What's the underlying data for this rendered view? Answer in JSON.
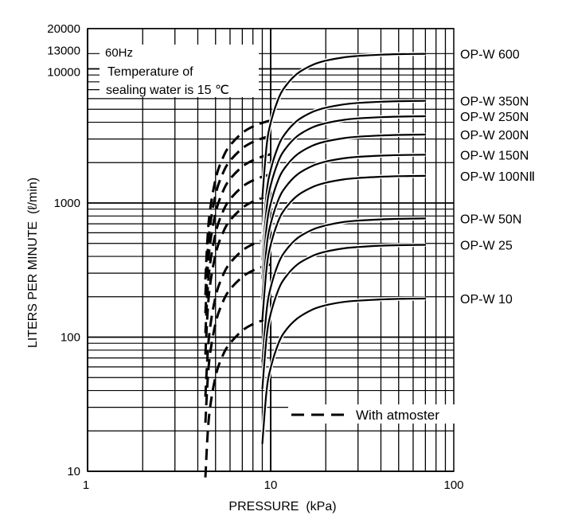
{
  "chart_data": {
    "type": "line",
    "title": "",
    "xlabel": "PRESSURE  (kPa)",
    "ylabel": "LITERS PER MINUTE  (ℓ/min)",
    "xscale": "log",
    "yscale": "log",
    "xlim": [
      1,
      100
    ],
    "ylim": [
      10,
      20000
    ],
    "grid": true,
    "x_ticks": [
      "1",
      "10",
      "100"
    ],
    "x_tick_values": [
      1,
      10,
      100
    ],
    "y_ticks": [
      "10",
      "100",
      "1000",
      "10000",
      "13000",
      "20000"
    ],
    "y_tick_values": [
      10,
      100,
      1000,
      10000,
      13000,
      20000
    ],
    "annotation": {
      "line1": "60Hz",
      "line2": "Temperature of",
      "line3": "sealing water is 15 ℃"
    },
    "legend": {
      "dashed_label": "With atmoster",
      "placement": "bottom-right"
    },
    "x": [
      9,
      9.5,
      10,
      11,
      12,
      14,
      17,
      20,
      25,
      30,
      40,
      50,
      70
    ],
    "series": [
      {
        "name": "OP-W 600",
        "values": [
          1092,
          2665,
          3952,
          5941,
          7371,
          9230,
          10725,
          11505,
          12168,
          12480,
          12753,
          12870,
          12948
        ]
      },
      {
        "name": "OP-W 350N",
        "values": [
          487,
          1189,
          1763,
          2651,
          3289,
          4118,
          4785,
          5133,
          5429,
          5568,
          5690,
          5742,
          5777
        ]
      },
      {
        "name": "OP-W 250N",
        "values": [
          374,
          912,
          1353,
          2034,
          2523,
          3160,
          3671,
          3938,
          4165,
          4272,
          4365,
          4406,
          4432
        ]
      },
      {
        "name": "OP-W 200N",
        "values": [
          273,
          666,
          988,
          1485,
          1843,
          2308,
          2681,
          2876,
          3042,
          3120,
          3188,
          3218,
          3237
        ]
      },
      {
        "name": "OP-W 150N",
        "values": [
          193,
          472,
          699,
          1051,
          1304,
          1633,
          1898,
          2036,
          2153,
          2208,
          2256,
          2277,
          2291
        ]
      },
      {
        "name": "OP-W 100NⅡ",
        "values": [
          134,
          328,
          486,
          731,
          907,
          1136,
          1320,
          1416,
          1498,
          1536,
          1570,
          1584,
          1594
        ]
      },
      {
        "name": "OP-W 50N",
        "values": [
          65,
          158,
          234,
          352,
          437,
          547,
          635,
          681,
          721,
          739,
          755,
          762,
          767
        ]
      },
      {
        "name": "OP-W 25",
        "values": [
          41,
          100,
          149,
          224,
          278,
          348,
          404,
          434,
          459,
          470,
          481,
          485,
          488
        ]
      },
      {
        "name": "OP-W 10",
        "values": [
          16,
          40,
          59,
          89,
          111,
          138,
          161,
          173,
          183,
          187,
          191,
          193,
          194
        ]
      }
    ],
    "dashed_x": [
      4.4,
      4.6,
      5,
      5.5,
      6,
      7,
      8,
      9,
      10
    ],
    "dashed_series": [
      {
        "name": "OP-W 350N with atmoster",
        "values": [
          269,
          747,
          1503,
          2195,
          2691,
          3332,
          3717,
          3958,
          4125
        ]
      },
      {
        "name": "OP-W 250N with atmoster",
        "values": [
          206,
          573,
          1153,
          1684,
          2065,
          2556,
          2852,
          3037,
          3165
        ]
      },
      {
        "name": "OP-W 200N with atmoster",
        "values": [
          151,
          419,
          842,
          1230,
          1508,
          1867,
          2083,
          2218,
          2311
        ]
      },
      {
        "name": "OP-W 150N with atmoster",
        "values": [
          107,
          296,
          596,
          870,
          1067,
          1321,
          1474,
          1570,
          1636
        ]
      },
      {
        "name": "OP-W 100NⅡ with atmoster",
        "values": [
          74,
          206,
          415,
          605,
          742,
          919,
          1025,
          1092,
          1138
        ]
      },
      {
        "name": "OP-W 50N with atmoster",
        "values": [
          36,
          99,
          200,
          291,
          357,
          442,
          493,
          525,
          548
        ]
      },
      {
        "name": "OP-W 25 with atmoster",
        "values": [
          23,
          63,
          127,
          185,
          227,
          281,
          314,
          334,
          348
        ]
      },
      {
        "name": "OP-W 10 with atmoster",
        "values": [
          9,
          25,
          51,
          74,
          90,
          112,
          125,
          133,
          139
        ]
      }
    ]
  }
}
